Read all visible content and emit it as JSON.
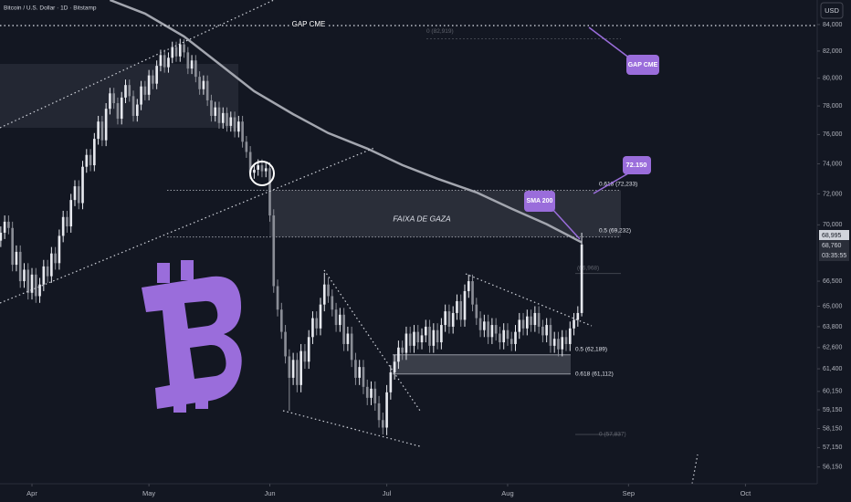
{
  "chart_data": {
    "type": "candlestick",
    "title": "Bitcoin / U.S. Dollar · 1D · Bitstamp",
    "currency": "USD",
    "log_scale": true,
    "grid": false,
    "up_color": "#e6e8ee",
    "down_color": "#8a8d96",
    "xlim": [
      -0.2,
      209.4
    ],
    "xticks": [
      {
        "value": 8,
        "label": "Apr"
      },
      {
        "value": 38,
        "label": "May"
      },
      {
        "value": 69,
        "label": "Jun"
      },
      {
        "value": 99,
        "label": "Jul"
      },
      {
        "value": 130,
        "label": "Aug"
      },
      {
        "value": 161,
        "label": "Sep"
      },
      {
        "value": 191,
        "label": "Oct"
      }
    ],
    "ylim": [
      55300,
      85900
    ],
    "yticks": [
      {
        "value": 84000,
        "label": "84,000"
      },
      {
        "value": 82000,
        "label": "82,000"
      },
      {
        "value": 80000,
        "label": "80,000"
      },
      {
        "value": 78000,
        "label": "78,000"
      },
      {
        "value": 76000,
        "label": "76,000"
      },
      {
        "value": 74000,
        "label": "74,000"
      },
      {
        "value": 72000,
        "label": "72,000"
      },
      {
        "value": 70000,
        "label": "70,000"
      },
      {
        "value": 66500,
        "label": "66,500"
      },
      {
        "value": 65000,
        "label": "65,000"
      },
      {
        "value": 63800,
        "label": "63,800"
      },
      {
        "value": 62600,
        "label": "62,600"
      },
      {
        "value": 61400,
        "label": "61,400"
      },
      {
        "value": 60150,
        "label": "60,150"
      },
      {
        "value": 59150,
        "label": "59,150"
      },
      {
        "value": 58150,
        "label": "58,150"
      },
      {
        "value": 57150,
        "label": "57,150"
      },
      {
        "value": 56150,
        "label": "56,150"
      }
    ],
    "ohlc": [
      [
        69000,
        69900,
        68600,
        69500
      ],
      [
        69500,
        70600,
        69100,
        70200
      ],
      [
        70200,
        70600,
        69400,
        69800
      ],
      [
        69800,
        70200,
        67100,
        67500
      ],
      [
        67500,
        68700,
        67100,
        68300
      ],
      [
        68300,
        68700,
        66100,
        66500
      ],
      [
        66500,
        67600,
        66100,
        67200
      ],
      [
        67200,
        67600,
        65400,
        65800
      ],
      [
        65800,
        67300,
        65400,
        66900
      ],
      [
        66900,
        67300,
        65200,
        65600
      ],
      [
        65600,
        66700,
        65200,
        66300
      ],
      [
        66300,
        67800,
        65900,
        67400
      ],
      [
        67400,
        67800,
        66400,
        66800
      ],
      [
        66800,
        68600,
        66400,
        68200
      ],
      [
        68200,
        68600,
        67200,
        67600
      ],
      [
        67600,
        69700,
        67200,
        69300
      ],
      [
        69300,
        70900,
        68900,
        70500
      ],
      [
        70500,
        70900,
        69500,
        69900
      ],
      [
        69900,
        72000,
        69500,
        71600
      ],
      [
        71600,
        72900,
        71200,
        72500
      ],
      [
        72500,
        72900,
        71000,
        71400
      ],
      [
        71400,
        74200,
        71000,
        73800
      ],
      [
        73800,
        75000,
        73400,
        74600
      ],
      [
        74600,
        75000,
        73500,
        73900
      ],
      [
        73900,
        76100,
        73500,
        75700
      ],
      [
        75700,
        77300,
        75300,
        76900
      ],
      [
        76900,
        77300,
        75200,
        75600
      ],
      [
        75600,
        78200,
        75200,
        77800
      ],
      [
        77800,
        79300,
        77400,
        78900
      ],
      [
        78900,
        79300,
        77800,
        78200
      ],
      [
        78200,
        78600,
        76700,
        77100
      ],
      [
        77100,
        79000,
        76700,
        78600
      ],
      [
        78600,
        79900,
        78200,
        79500
      ],
      [
        79500,
        79900,
        78300,
        78700
      ],
      [
        78700,
        79100,
        76900,
        77300
      ],
      [
        77300,
        78500,
        76900,
        78100
      ],
      [
        78100,
        79800,
        77700,
        79400
      ],
      [
        79400,
        79800,
        78400,
        78800
      ],
      [
        78800,
        80600,
        78400,
        80200
      ],
      [
        80200,
        80600,
        79200,
        79600
      ],
      [
        79600,
        81300,
        79200,
        80900
      ],
      [
        80900,
        82100,
        80500,
        81700
      ],
      [
        81700,
        82100,
        80400,
        80800
      ],
      [
        80800,
        81900,
        80400,
        81500
      ],
      [
        81500,
        82700,
        81100,
        82300
      ],
      [
        82300,
        82700,
        81200,
        81600
      ],
      [
        81600,
        82919,
        81200,
        82500
      ],
      [
        82500,
        82900,
        81500,
        81900
      ],
      [
        81900,
        82300,
        80300,
        80700
      ],
      [
        80700,
        81700,
        80300,
        81300
      ],
      [
        81300,
        81700,
        79700,
        80100
      ],
      [
        80100,
        80500,
        78800,
        79200
      ],
      [
        79200,
        80200,
        78800,
        79800
      ],
      [
        79800,
        80200,
        78000,
        78400
      ],
      [
        78400,
        78800,
        76900,
        77300
      ],
      [
        77300,
        78300,
        76900,
        77900
      ],
      [
        77900,
        78300,
        76400,
        76800
      ],
      [
        76800,
        77900,
        76400,
        77500
      ],
      [
        77500,
        77900,
        76200,
        76600
      ],
      [
        76600,
        77600,
        76200,
        77200
      ],
      [
        77200,
        77600,
        75800,
        76200
      ],
      [
        76200,
        77300,
        75800,
        76900
      ],
      [
        76900,
        77300,
        75100,
        75500
      ],
      [
        75500,
        75900,
        74400,
        74800
      ],
      [
        74800,
        75200,
        73000,
        73400
      ],
      [
        73400,
        74000,
        73000,
        73600
      ],
      [
        73600,
        74300,
        73200,
        73900
      ],
      [
        73900,
        74300,
        73100,
        73500
      ],
      [
        73500,
        74100,
        73100,
        73700
      ],
      [
        73700,
        74100,
        70200,
        70600
      ],
      [
        70600,
        71000,
        65800,
        66200
      ],
      [
        66200,
        66600,
        64400,
        64800
      ],
      [
        64800,
        65200,
        63100,
        63500
      ],
      [
        63500,
        63900,
        61700,
        62100
      ],
      [
        62100,
        62500,
        59100,
        60900
      ],
      [
        60900,
        62300,
        60500,
        61900
      ],
      [
        61900,
        62300,
        60100,
        60500
      ],
      [
        60500,
        62800,
        60100,
        62400
      ],
      [
        62400,
        62800,
        61400,
        61800
      ],
      [
        61800,
        63600,
        61400,
        63200
      ],
      [
        63200,
        64700,
        62800,
        64300
      ],
      [
        64300,
        64700,
        63300,
        63700
      ],
      [
        63700,
        65500,
        63300,
        65100
      ],
      [
        65100,
        67000,
        64700,
        66300
      ],
      [
        66300,
        66700,
        65200,
        65600
      ],
      [
        65600,
        66000,
        64400,
        64800
      ],
      [
        64800,
        65200,
        63500,
        63900
      ],
      [
        63900,
        64900,
        63500,
        64500
      ],
      [
        64500,
        64900,
        62400,
        62800
      ],
      [
        62800,
        63800,
        62400,
        63400
      ],
      [
        63400,
        63800,
        61500,
        61900
      ],
      [
        61900,
        62300,
        60500,
        60900
      ],
      [
        60900,
        61900,
        60500,
        61500
      ],
      [
        61500,
        61900,
        60000,
        60400
      ],
      [
        60400,
        60800,
        59400,
        59800
      ],
      [
        59800,
        60700,
        59400,
        60300
      ],
      [
        60300,
        60700,
        59100,
        59500
      ],
      [
        59500,
        59900,
        58200,
        58600
      ],
      [
        58600,
        59000,
        57837,
        58200
      ],
      [
        58200,
        60500,
        57800,
        60100
      ],
      [
        60100,
        61600,
        59700,
        61200
      ],
      [
        61200,
        62200,
        60800,
        61800
      ],
      [
        61800,
        63000,
        61400,
        62600
      ],
      [
        62600,
        63000,
        61900,
        62300
      ],
      [
        62300,
        63800,
        61900,
        63400
      ],
      [
        63400,
        63800,
        62300,
        62700
      ],
      [
        62700,
        63900,
        62300,
        63500
      ],
      [
        63500,
        63900,
        62500,
        62900
      ],
      [
        62900,
        63700,
        62500,
        63300
      ],
      [
        63300,
        64200,
        62900,
        63800
      ],
      [
        63800,
        64200,
        62300,
        62700
      ],
      [
        62700,
        64000,
        62300,
        63600
      ],
      [
        63600,
        64000,
        62500,
        62900
      ],
      [
        62900,
        64300,
        62500,
        63900
      ],
      [
        63900,
        65100,
        63500,
        64700
      ],
      [
        64700,
        65100,
        63400,
        63800
      ],
      [
        63800,
        65000,
        63400,
        64600
      ],
      [
        64600,
        65700,
        64200,
        65300
      ],
      [
        65300,
        65700,
        63800,
        64200
      ],
      [
        64200,
        66300,
        63800,
        65900
      ],
      [
        65900,
        66900,
        65500,
        66500
      ],
      [
        66500,
        66900,
        64700,
        65100
      ],
      [
        65100,
        65500,
        63900,
        64300
      ],
      [
        64300,
        64700,
        63200,
        63600
      ],
      [
        63600,
        64500,
        63200,
        64100
      ],
      [
        64100,
        64500,
        62800,
        63200
      ],
      [
        63200,
        64300,
        62800,
        63900
      ],
      [
        63900,
        64300,
        63000,
        63400
      ],
      [
        63400,
        63800,
        62500,
        62900
      ],
      [
        62900,
        64000,
        62500,
        63600
      ],
      [
        63600,
        64000,
        62700,
        63100
      ],
      [
        63100,
        63500,
        62400,
        62800
      ],
      [
        62800,
        63900,
        62400,
        63500
      ],
      [
        63500,
        64600,
        63100,
        64200
      ],
      [
        64200,
        64600,
        63300,
        63700
      ],
      [
        63700,
        64800,
        63300,
        64400
      ],
      [
        64400,
        64800,
        63500,
        63900
      ],
      [
        63900,
        65000,
        63500,
        64600
      ],
      [
        64600,
        65000,
        63400,
        63800
      ],
      [
        63800,
        64200,
        62900,
        63300
      ],
      [
        63300,
        64300,
        62900,
        63900
      ],
      [
        63900,
        64300,
        62300,
        62700
      ],
      [
        62700,
        63500,
        62300,
        63100
      ],
      [
        63100,
        63500,
        62100,
        62500
      ],
      [
        62500,
        63600,
        62100,
        63200
      ],
      [
        63200,
        63600,
        62400,
        62800
      ],
      [
        62800,
        64100,
        62400,
        63700
      ],
      [
        63700,
        64600,
        63300,
        64200
      ],
      [
        64200,
        65000,
        63800,
        64600
      ],
      [
        64600,
        69500,
        64400,
        68760
      ]
    ],
    "sma": {
      "color": "#a3a6af",
      "x": [
        28,
        37,
        47,
        56,
        65,
        75,
        84,
        94,
        103,
        112,
        122,
        131,
        140,
        149
      ],
      "values": [
        85900,
        84840,
        83100,
        81050,
        79050,
        77420,
        76100,
        75030,
        73910,
        73000,
        72100,
        71040,
        70040,
        68890
      ]
    },
    "levels": [
      {
        "label": "0 (82,919)",
        "value": 82919
      },
      {
        "label": "0.618 (72,233)",
        "value": 72233
      },
      {
        "label": "0.5 (69,232)",
        "value": 69232
      },
      {
        "label": "(66,968)",
        "value": 66968
      },
      {
        "label": "0.5 (62,189)",
        "value": 62189
      },
      {
        "label": "0.618 (61,112)",
        "value": 61112
      },
      {
        "label": "0 (57,837)",
        "value": 57837
      }
    ],
    "annotations": {
      "gap_label": "GAP CME",
      "gap_callout": "GAP CME",
      "zone": "FAIXA DE GAZA",
      "sma_callout": "SMA 200",
      "target_callout": "72.150"
    },
    "price_labels": {
      "sma_price": "68,995",
      "last_price": "68,760",
      "countdown": "03:35:55"
    }
  }
}
